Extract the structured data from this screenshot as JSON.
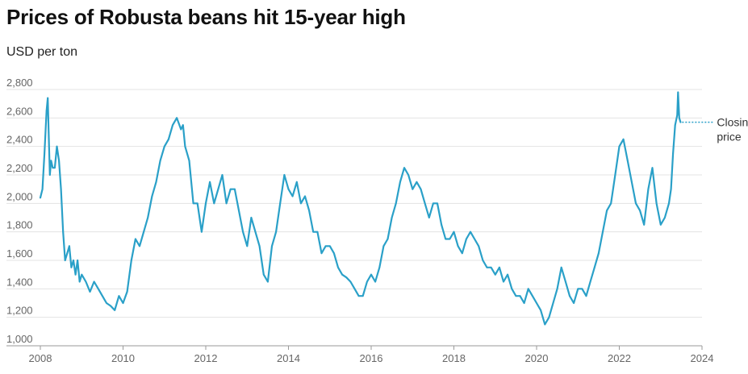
{
  "chart_data": {
    "type": "line",
    "title": "Prices of Robusta beans hit 15-year high",
    "subtitle": "USD per ton",
    "xlabel": "",
    "ylabel": "USD per ton",
    "xlim": [
      2008,
      2024
    ],
    "ylim": [
      1000,
      2800
    ],
    "x_ticks": [
      "2008",
      "2010",
      "2012",
      "2014",
      "2016",
      "2018",
      "2020",
      "2022",
      "2024"
    ],
    "y_ticks": [
      "1,000",
      "1,200",
      "1,400",
      "1,600",
      "1,800",
      "2,000",
      "2,200",
      "2,400",
      "2,600",
      "2,800"
    ],
    "annotation": [
      "Closing",
      "price"
    ],
    "line_color": "#2aa0c8",
    "series": [
      {
        "name": "Robusta closing price",
        "x": [
          2008.0,
          2008.05,
          2008.1,
          2008.15,
          2008.18,
          2008.2,
          2008.23,
          2008.26,
          2008.3,
          2008.35,
          2008.4,
          2008.45,
          2008.5,
          2008.55,
          2008.6,
          2008.65,
          2008.7,
          2008.75,
          2008.8,
          2008.85,
          2008.9,
          2008.95,
          2009.0,
          2009.1,
          2009.2,
          2009.3,
          2009.4,
          2009.5,
          2009.6,
          2009.7,
          2009.8,
          2009.9,
          2010.0,
          2010.1,
          2010.2,
          2010.3,
          2010.4,
          2010.5,
          2010.6,
          2010.7,
          2010.8,
          2010.9,
          2011.0,
          2011.1,
          2011.2,
          2011.3,
          2011.4,
          2011.45,
          2011.5,
          2011.6,
          2011.7,
          2011.8,
          2011.9,
          2012.0,
          2012.1,
          2012.2,
          2012.3,
          2012.4,
          2012.5,
          2012.6,
          2012.7,
          2012.8,
          2012.9,
          2013.0,
          2013.1,
          2013.2,
          2013.3,
          2013.4,
          2013.5,
          2013.6,
          2013.7,
          2013.8,
          2013.9,
          2014.0,
          2014.1,
          2014.2,
          2014.3,
          2014.4,
          2014.5,
          2014.6,
          2014.7,
          2014.8,
          2014.9,
          2015.0,
          2015.1,
          2015.2,
          2015.3,
          2015.4,
          2015.5,
          2015.6,
          2015.7,
          2015.8,
          2015.9,
          2016.0,
          2016.1,
          2016.2,
          2016.3,
          2016.4,
          2016.5,
          2016.6,
          2016.7,
          2016.8,
          2016.9,
          2017.0,
          2017.1,
          2017.2,
          2017.3,
          2017.4,
          2017.5,
          2017.6,
          2017.7,
          2017.8,
          2017.9,
          2018.0,
          2018.1,
          2018.2,
          2018.3,
          2018.4,
          2018.5,
          2018.6,
          2018.7,
          2018.8,
          2018.9,
          2019.0,
          2019.1,
          2019.2,
          2019.3,
          2019.4,
          2019.5,
          2019.6,
          2019.7,
          2019.8,
          2019.9,
          2020.0,
          2020.1,
          2020.2,
          2020.3,
          2020.4,
          2020.5,
          2020.6,
          2020.7,
          2020.8,
          2020.9,
          2021.0,
          2021.1,
          2021.2,
          2021.3,
          2021.4,
          2021.5,
          2021.6,
          2021.7,
          2021.8,
          2021.9,
          2022.0,
          2022.1,
          2022.2,
          2022.3,
          2022.4,
          2022.5,
          2022.6,
          2022.7,
          2022.8,
          2022.9,
          2023.0,
          2023.1,
          2023.2,
          2023.25,
          2023.3,
          2023.35,
          2023.4,
          2023.42,
          2023.45,
          2023.48
        ],
        "values": [
          2040,
          2100,
          2350,
          2650,
          2740,
          2500,
          2200,
          2300,
          2250,
          2250,
          2400,
          2300,
          2100,
          1800,
          1600,
          1650,
          1700,
          1550,
          1600,
          1500,
          1600,
          1450,
          1500,
          1450,
          1380,
          1450,
          1400,
          1350,
          1300,
          1280,
          1250,
          1350,
          1300,
          1380,
          1600,
          1750,
          1700,
          1800,
          1900,
          2050,
          2150,
          2300,
          2400,
          2450,
          2550,
          2600,
          2520,
          2550,
          2400,
          2300,
          2000,
          2000,
          1800,
          2000,
          2150,
          2000,
          2100,
          2200,
          2000,
          2100,
          2100,
          1950,
          1800,
          1700,
          1900,
          1800,
          1700,
          1500,
          1450,
          1700,
          1800,
          2000,
          2200,
          2100,
          2050,
          2150,
          2000,
          2050,
          1950,
          1800,
          1800,
          1650,
          1700,
          1700,
          1650,
          1550,
          1500,
          1480,
          1450,
          1400,
          1350,
          1350,
          1450,
          1500,
          1450,
          1550,
          1700,
          1750,
          1900,
          2000,
          2150,
          2250,
          2200,
          2100,
          2150,
          2100,
          2000,
          1900,
          2000,
          2000,
          1850,
          1750,
          1750,
          1800,
          1700,
          1650,
          1750,
          1800,
          1750,
          1700,
          1600,
          1550,
          1550,
          1500,
          1550,
          1450,
          1500,
          1400,
          1350,
          1350,
          1300,
          1400,
          1350,
          1300,
          1250,
          1150,
          1200,
          1300,
          1400,
          1550,
          1450,
          1350,
          1300,
          1400,
          1400,
          1350,
          1450,
          1550,
          1650,
          1800,
          1950,
          2000,
          2200,
          2400,
          2450,
          2300,
          2150,
          2000,
          1950,
          1850,
          2100,
          2250,
          2000,
          1850,
          1900,
          2000,
          2100,
          2350,
          2550,
          2620,
          2780,
          2600,
          2570
        ]
      }
    ]
  }
}
